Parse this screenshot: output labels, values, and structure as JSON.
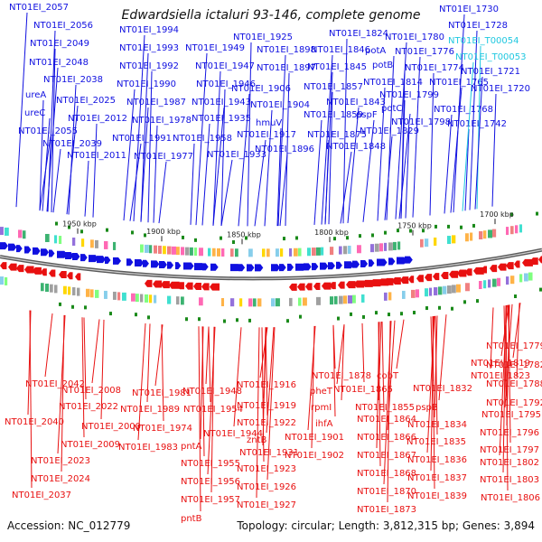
{
  "title": "Edwardsiella ictaluri 93-146, complete genome",
  "accession": "Accession: NC_012779",
  "topology": "Topology: circular; Length: 3,812,315 bp; Genes: 3,894",
  "colors": {
    "forward": "#1010e0",
    "reverse": "#e81010",
    "rna": "#20c8e0",
    "backbone": "#777777",
    "tick": "#1a8a1a"
  },
  "ticks": [
    "1950 kbp",
    "1900 kbp",
    "1850 kbp",
    "1800 kbp",
    "1750 kbp",
    "1700 kbp"
  ],
  "top_labels": [
    "NT01EI_2057",
    "NT01EI_2056",
    "NT01EI_2049",
    "NT01EI_2048",
    "NT01EI_2038",
    "ureA",
    "NT01EI_2025",
    "ureC",
    "NT01EI_2012",
    "NT01EI_2055",
    "NT01EI_2039",
    "NT01EI_2011",
    "NT01EI_1994",
    "NT01EI_1993",
    "NT01EI_1992",
    "NT01EI_1990",
    "NT01EI_1987",
    "NT01EI_1978",
    "NT01EI_1991",
    "NT01EI_1977",
    "NT01EI_1925",
    "NT01EI_1949",
    "NT01EI_1947",
    "NT01EI_1946",
    "NT01EI_1943",
    "NT01EI_1935",
    "NT01EI_1958",
    "NT01EI_1933",
    "NT01EI_1898",
    "NT01EI_1897",
    "NT01EI_1906",
    "NT01EI_1904",
    "hmuV",
    "NT01EI_1917",
    "NT01EI_1896",
    "NT01EI_1824",
    "NT01EI_1846",
    "NT01EI_1845",
    "NT01EI_1857",
    "NT01EI_1843",
    "NT01EI_1859",
    "NT01EI_1875",
    "NT01EI_1848",
    "potA",
    "potB",
    "pspF",
    "NT01EI_1814",
    "NT01EI_1799",
    "potC",
    "NT01EI_1829",
    "NT01EI_1798",
    "NT01EI_1780",
    "NT01EI_1776",
    "NT01EI_1774",
    "NT01EI_1765",
    "NT01EI_1768",
    "NT01EI_1742",
    "NT01EI_1730",
    "NT01EI_1728",
    "NT01EI_T00054",
    "NT01EI_T00053",
    "NT01EI_1721",
    "NT01EI_1720"
  ],
  "bottom_labels": [
    "NT01EI_2042",
    "NT01EI_2040",
    "NT01EI_2022",
    "NT01EI_2008",
    "NT01EI_2000",
    "NT01EI_2009",
    "NT01EI_2023",
    "NT01EI_2024",
    "NT01EI_2037",
    "NT01EI_1981",
    "NT01EI_1989",
    "NT01EI_1974",
    "NT01EI_1983",
    "NT01EI_1948",
    "NT01EI_1954",
    "NT01EI_1944",
    "pntA",
    "NT01EI_1955",
    "NT01EI_1956",
    "NT01EI_1957",
    "pntB",
    "NT01EI_1916",
    "NT01EI_1919",
    "NT01EI_1922",
    "zntB",
    "NT01EI_1931",
    "NT01EI_1923",
    "NT01EI_1926",
    "NT01EI_1927",
    "NT01EI_1878",
    "pheT",
    "rpmI",
    "ihfA",
    "NT01EI_1901",
    "NT01EI_1902",
    "NT01EI_1865",
    "cobT",
    "NT01EI_1855",
    "NT01EI_1864",
    "NT01EI_1866",
    "NT01EI_1867",
    "NT01EI_1868",
    "NT01EI_1870",
    "NT01EI_1873",
    "NT01EI_1832",
    "pspB",
    "NT01EI_1834",
    "NT01EI_1835",
    "NT01EI_1836",
    "NT01EI_1837",
    "NT01EI_1839",
    "NT01EI_1819",
    "NT01EI_1823",
    "NT01EI_1779",
    "NT01EI_1782",
    "NT01EI_1788",
    "NT01EI_1792",
    "NT01EI_1795",
    "NT01EI_1796",
    "NT01EI_1797",
    "NT01EI_1802",
    "NT01EI_1803",
    "NT01EI_1806"
  ]
}
